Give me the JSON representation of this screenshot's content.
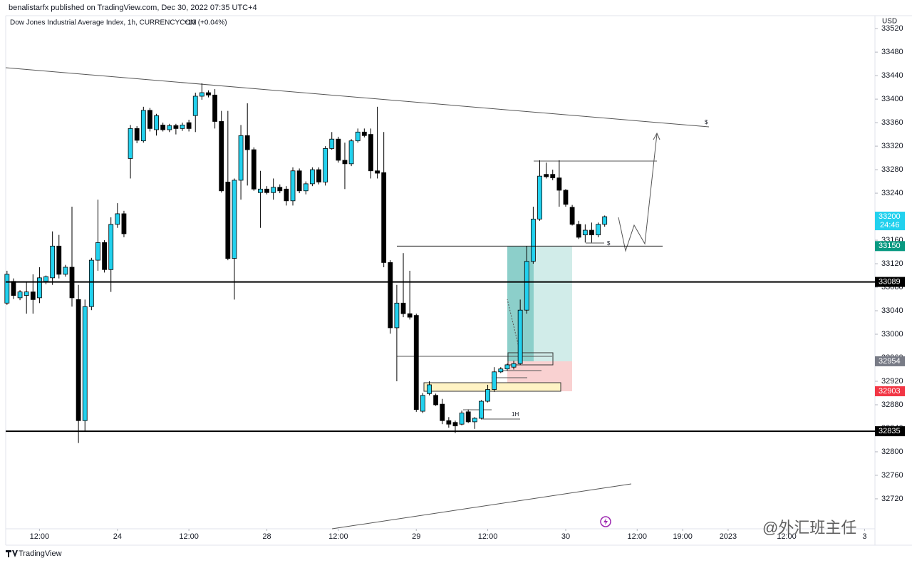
{
  "header": "benalistarfx published on TradingView.com, Dec 30, 2022 07:35 UTC+4",
  "chart_data": {
    "type": "candlestick",
    "title": "Dow Jones Industrial Average Index, 1h, CURRENCYCOM",
    "change": "+13 (+0.04%)",
    "currency": "USD",
    "up_color": "#22d1ee",
    "down_color": "#000000",
    "open": [
      33053,
      33090,
      33062,
      33066,
      33072,
      33062,
      33090,
      33096,
      33150,
      33102,
      33114,
      33059,
      32853,
      33047,
      33126,
      33156,
      33110,
      33187,
      33205,
      33299,
      33350,
      33329,
      33381,
      33348,
      33356,
      33348,
      33355,
      33350,
      33360,
      33372,
      33405,
      33411,
      33407,
      33362,
      33259,
      33129,
      33262,
      33338,
      33314,
      33241,
      33247,
      33241,
      33250,
      33247,
      33227,
      33278,
      33244,
      33256,
      33280,
      33259,
      33316,
      33332,
      33296,
      33290,
      33329,
      33344,
      33340,
      33278,
      33275,
      33122,
      33011,
      33053,
      33035,
      33032,
      32869,
      32899,
      32896,
      32881,
      32853,
      32850,
      32847,
      32868,
      32851,
      32857,
      32886,
      32906,
      32936,
      32941,
      32944,
      32950,
      33041,
      33124,
      33196,
      33272,
      33272,
      33266,
      33245,
      33216,
      33187,
      33169,
      33177,
      33169,
      33187
    ],
    "high": [
      33108,
      33095,
      33075,
      33090,
      33102,
      33114,
      33100,
      33175,
      33169,
      33118,
      33217,
      33084,
      33059,
      33130,
      33229,
      33160,
      33199,
      33223,
      33210,
      33356,
      33354,
      33387,
      33385,
      33375,
      33360,
      33358,
      33358,
      33360,
      33365,
      33411,
      33427,
      33415,
      33417,
      33380,
      33380,
      33265,
      33356,
      33393,
      33318,
      33278,
      33252,
      33265,
      33255,
      33252,
      33284,
      33282,
      33260,
      33284,
      33284,
      33320,
      33344,
      33336,
      33326,
      33332,
      33350,
      33350,
      33350,
      33387,
      33344,
      33126,
      33084,
      33138,
      33108,
      33035,
      32900,
      32920,
      32899,
      32890,
      32859,
      32853,
      32870,
      32872,
      32859,
      32888,
      32914,
      32944,
      32944,
      32950,
      32955,
      33059,
      33150,
      33217,
      33296,
      33292,
      33280,
      33296,
      33247,
      33220,
      33193,
      33187,
      33190,
      33190,
      33202
    ],
    "low": [
      33050,
      33060,
      33058,
      33035,
      33035,
      33053,
      33085,
      33084,
      33095,
      33098,
      33047,
      32815,
      32835,
      33041,
      33108,
      33105,
      33072,
      33181,
      33165,
      33265,
      33325,
      33326,
      33345,
      33338,
      33345,
      33344,
      33340,
      33346,
      33345,
      33344,
      33399,
      33403,
      33350,
      33241,
      33126,
      33059,
      33229,
      33253,
      33244,
      33181,
      33238,
      33229,
      33240,
      33219,
      33219,
      33240,
      33238,
      33252,
      33255,
      33253,
      33314,
      33292,
      33247,
      33286,
      33326,
      33335,
      33265,
      33265,
      33114,
      33001,
      32920,
      33029,
      33025,
      32868,
      32866,
      32896,
      32878,
      32847,
      32841,
      32832,
      32845,
      32849,
      32839,
      32855,
      32884,
      32902,
      32934,
      32938,
      32940,
      32948,
      33035,
      33120,
      33193,
      33265,
      33262,
      33217,
      33217,
      33185,
      33162,
      33156,
      33156,
      33165,
      33183
    ],
    "close": [
      33102,
      33066,
      33072,
      33072,
      33059,
      33096,
      33098,
      33150,
      33102,
      33114,
      33062,
      32853,
      33047,
      33126,
      33156,
      33110,
      33187,
      33205,
      33171,
      33350,
      33330,
      33381,
      33350,
      33372,
      33348,
      33355,
      33350,
      33356,
      33350,
      33405,
      33411,
      33407,
      33362,
      33244,
      33129,
      33262,
      33338,
      33314,
      33247,
      33247,
      33241,
      33250,
      33244,
      33227,
      33278,
      33244,
      33256,
      33280,
      33259,
      33316,
      33332,
      33296,
      33290,
      33329,
      33344,
      33338,
      33278,
      33274,
      33122,
      33011,
      33053,
      33035,
      33029,
      32872,
      32896,
      32914,
      32880,
      32853,
      32847,
      32844,
      32866,
      32851,
      32857,
      32886,
      32906,
      32936,
      32941,
      32948,
      32950,
      33041,
      33124,
      33196,
      33269,
      33268,
      33266,
      33245,
      33221,
      33187,
      33165,
      33177,
      33169,
      33187,
      33200
    ],
    "xlim": [
      -0.2,
      133.6
    ],
    "xticks": [
      {
        "value": 5,
        "label": "12:00"
      },
      {
        "value": 17,
        "label": "24"
      },
      {
        "value": 28,
        "label": "12:00"
      },
      {
        "value": 40,
        "label": "28"
      },
      {
        "value": 51,
        "label": "12:00"
      },
      {
        "value": 63,
        "label": "29"
      },
      {
        "value": 74,
        "label": "12:00"
      },
      {
        "value": 86,
        "label": "30"
      },
      {
        "value": 97,
        "label": "12:00"
      },
      {
        "value": 104,
        "label": "19:00"
      },
      {
        "value": 111,
        "label": "2023"
      },
      {
        "value": 120,
        "label": "12:00"
      },
      {
        "value": 132,
        "label": "3"
      }
    ],
    "ylim": [
      32669,
      33542
    ],
    "yticks": [
      32720,
      32760,
      32800,
      32840,
      32880,
      32920,
      32960,
      33000,
      33040,
      33080,
      33120,
      33160,
      33200,
      33240,
      33280,
      33320,
      33360,
      33400,
      33440,
      33480,
      33520
    ],
    "price_labels": [
      {
        "value": 33200,
        "color": "#22d1ee"
      },
      {
        "value": 33150,
        "color": "#089981"
      },
      {
        "value": 33089,
        "color": "#000000"
      },
      {
        "value": 32954,
        "color": "#787b86"
      },
      {
        "value": 32903,
        "color": "#f23645"
      },
      {
        "value": 32835,
        "color": "#000000"
      }
    ],
    "countdown": "24:46",
    "annotations": {
      "timeframe": "1H",
      "liquidity_high": "$",
      "liquidity_low": "$"
    }
  },
  "footer": "TradingView",
  "watermark": "@外汇班主任"
}
